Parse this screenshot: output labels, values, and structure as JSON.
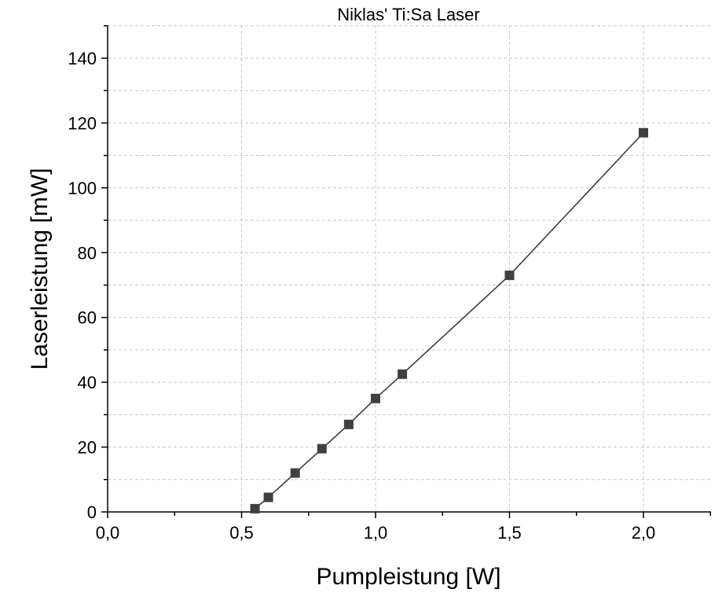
{
  "chart_data": {
    "type": "line",
    "title": "Niklas' Ti:Sa Laser",
    "xlabel": "Pumpleistung [W]",
    "ylabel": "Laserleistung [mW]",
    "xlim": [
      0,
      2.25
    ],
    "ylim": [
      0,
      150
    ],
    "xticks": [
      {
        "value": 0,
        "label": "0,0"
      },
      {
        "value": 0.5,
        "label": "0,5"
      },
      {
        "value": 1.0,
        "label": "1,0"
      },
      {
        "value": 1.5,
        "label": "1,5"
      },
      {
        "value": 2.0,
        "label": "2,0"
      }
    ],
    "yticks": [
      {
        "value": 0,
        "label": "0"
      },
      {
        "value": 20,
        "label": "20"
      },
      {
        "value": 40,
        "label": "40"
      },
      {
        "value": 60,
        "label": "60"
      },
      {
        "value": 80,
        "label": "80"
      },
      {
        "value": 100,
        "label": "100"
      },
      {
        "value": 120,
        "label": "120"
      },
      {
        "value": 140,
        "label": "140"
      }
    ],
    "grid": true,
    "legend": "none",
    "marker": "square",
    "series": [
      {
        "x": [
          0.55,
          0.6,
          0.7,
          0.8,
          0.9,
          1.0,
          1.1,
          1.5,
          2.0
        ],
        "y": [
          1,
          4.5,
          12,
          19.5,
          27,
          35,
          42.5,
          73,
          117
        ]
      }
    ],
    "colors": {
      "line": "#333333",
      "marker": "#404040",
      "grid": "#c8c8c8",
      "axis": "#000000"
    }
  }
}
